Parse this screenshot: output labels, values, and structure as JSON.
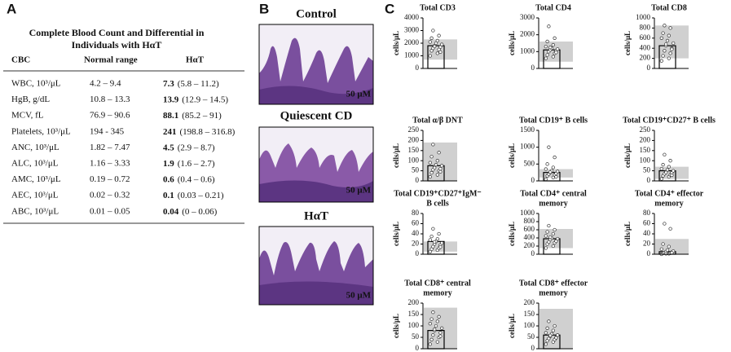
{
  "panels": {
    "a": "A",
    "b": "B",
    "c": "C"
  },
  "table": {
    "title": [
      "Complete Blood Count and Differential in",
      "Individuals with HαT"
    ],
    "header": [
      "CBC",
      "Normal range",
      "HαT"
    ],
    "rows": [
      [
        "WBC, 10³/μL",
        "4.2 – 9.4",
        "7.3",
        "(5.8 – 11.2)"
      ],
      [
        "HgB, g/dL",
        "10.8 – 13.3",
        "13.9",
        "(12.9 – 14.5)"
      ],
      [
        "MCV, fL",
        "76.9 – 90.6",
        "88.1",
        "(85.2 – 91)"
      ],
      [
        "Platelets, 10³/μL",
        "194 - 345",
        "241",
        "(198.8 – 316.8)"
      ],
      [
        "ANC, 10³/μL",
        "1.82 – 7.47",
        "4.5",
        "(2.9 – 8.7)"
      ],
      [
        "ALC, 10³/μL",
        "1.16 – 3.33",
        "1.9",
        "(1.6 – 2.7)"
      ],
      [
        "AMC, 10³/μL",
        "0.19 – 0.72",
        "0.6",
        "(0.4 – 0.6)"
      ],
      [
        "AEC, 10³/μL",
        "0.02 – 0.32",
        "0.1",
        "(0.03 – 0.21)"
      ],
      [
        "ABC, 10³/μL",
        "0.01 – 0.05",
        "0.04",
        "(0 – 0.06)"
      ]
    ]
  },
  "images": [
    {
      "label": "Control",
      "scale": "50 μM"
    },
    {
      "label": "Quiescent CD",
      "scale": "50 μM"
    },
    {
      "label": "HαT",
      "scale": "50 μM"
    }
  ],
  "chart_data": [
    {
      "type": "bar",
      "title": [
        "Total CD3"
      ],
      "ylabel": "cells/μL",
      "ylim": [
        0,
        4000
      ],
      "yticks": [
        0,
        1000,
        2000,
        3000,
        4000
      ],
      "value": 1800,
      "range": [
        700,
        2300
      ],
      "points": [
        1000,
        1200,
        1400,
        1500,
        1600,
        1700,
        1800,
        1900,
        2000,
        2100,
        2200,
        2400,
        2600,
        3000,
        1300,
        1750
      ]
    },
    {
      "type": "bar",
      "title": [
        "Total CD4"
      ],
      "ylabel": "cells/μL",
      "ylim": [
        0,
        3000
      ],
      "yticks": [
        0,
        1000,
        2000,
        3000
      ],
      "value": 1100,
      "range": [
        400,
        1600
      ],
      "points": [
        600,
        700,
        800,
        900,
        1000,
        1050,
        1100,
        1150,
        1200,
        1300,
        1400,
        1600,
        1800,
        2500,
        950,
        1250
      ]
    },
    {
      "type": "bar",
      "title": [
        "Total CD8"
      ],
      "ylabel": "cells/μL",
      "ylim": [
        0,
        1000
      ],
      "yticks": [
        0,
        200,
        400,
        600,
        800,
        1000
      ],
      "value": 450,
      "range": [
        200,
        850
      ],
      "points": [
        150,
        200,
        250,
        300,
        350,
        400,
        450,
        500,
        550,
        600,
        650,
        700,
        800,
        850,
        380,
        480
      ]
    },
    {
      "type": "bar",
      "title": [
        "Total α/β DNT"
      ],
      "ylabel": "cells/μL",
      "ylim": [
        0,
        250
      ],
      "yticks": [
        0,
        50,
        100,
        150,
        200,
        250
      ],
      "value": 75,
      "range": [
        0,
        190
      ],
      "points": [
        20,
        30,
        40,
        50,
        55,
        60,
        70,
        75,
        80,
        90,
        100,
        120,
        140,
        180,
        45,
        65
      ]
    },
    {
      "type": "bar",
      "title": [
        "Total CD19⁺ B cells"
      ],
      "ylabel": "cells/μL",
      "ylim": [
        0,
        1500
      ],
      "yticks": [
        0,
        500,
        1000,
        1500
      ],
      "value": 250,
      "range": [
        100,
        350
      ],
      "points": [
        50,
        100,
        150,
        180,
        200,
        220,
        250,
        280,
        300,
        350,
        400,
        500,
        700,
        1000,
        120,
        260
      ]
    },
    {
      "type": "bar",
      "title": [
        "Total CD19⁺CD27⁺ B cells"
      ],
      "ylabel": "cells/μL",
      "ylim": [
        0,
        250
      ],
      "yticks": [
        0,
        50,
        100,
        150,
        200,
        250
      ],
      "value": 50,
      "range": [
        10,
        70
      ],
      "points": [
        10,
        20,
        25,
        30,
        35,
        40,
        45,
        50,
        55,
        60,
        70,
        80,
        100,
        130,
        28,
        42
      ]
    },
    {
      "type": "bar",
      "title": [
        "Total CD19⁺CD27⁺IgM⁻",
        "B cells"
      ],
      "ylabel": "cells/μL",
      "ylim": [
        0,
        80
      ],
      "yticks": [
        0,
        20,
        40,
        60,
        80
      ],
      "value": 25,
      "range": [
        5,
        25
      ],
      "points": [
        5,
        8,
        10,
        12,
        15,
        18,
        20,
        22,
        25,
        28,
        30,
        35,
        40,
        50,
        14,
        24
      ]
    },
    {
      "type": "bar",
      "title": [
        "Total CD4⁺ central",
        "memory"
      ],
      "ylabel": "cells/μL",
      "ylim": [
        0,
        1000
      ],
      "yticks": [
        0,
        200,
        400,
        600,
        800,
        1000
      ],
      "value": 380,
      "range": [
        150,
        620
      ],
      "points": [
        150,
        200,
        250,
        280,
        300,
        330,
        360,
        380,
        400,
        450,
        500,
        550,
        600,
        700,
        320,
        420
      ]
    },
    {
      "type": "bar",
      "title": [
        "Total CD4⁺ effector",
        "memory"
      ],
      "ylabel": "cells/μL",
      "ylim": [
        0,
        80
      ],
      "yticks": [
        0,
        20,
        40,
        60,
        80
      ],
      "value": 5,
      "range": [
        0,
        30
      ],
      "points": [
        0,
        1,
        2,
        2,
        3,
        4,
        5,
        6,
        8,
        10,
        15,
        20,
        50,
        60,
        3,
        1
      ]
    },
    {
      "type": "bar",
      "title": [
        "Total CD8⁺ central",
        "memory"
      ],
      "ylabel": "cells/μL",
      "ylim": [
        0,
        200
      ],
      "yticks": [
        0,
        50,
        100,
        150,
        200
      ],
      "value": 80,
      "range": [
        0,
        180
      ],
      "points": [
        20,
        30,
        40,
        50,
        60,
        70,
        80,
        90,
        100,
        110,
        120,
        130,
        140,
        160,
        55,
        85
      ]
    },
    {
      "type": "bar",
      "title": [
        "Total CD8⁺ effector",
        "memory"
      ],
      "ylabel": "cells/μL",
      "ylim": [
        0,
        200
      ],
      "yticks": [
        0,
        50,
        100,
        150,
        200
      ],
      "value": 60,
      "range": [
        0,
        175
      ],
      "points": [
        20,
        30,
        35,
        40,
        45,
        50,
        55,
        60,
        65,
        70,
        80,
        90,
        100,
        120,
        48,
        58
      ]
    }
  ]
}
